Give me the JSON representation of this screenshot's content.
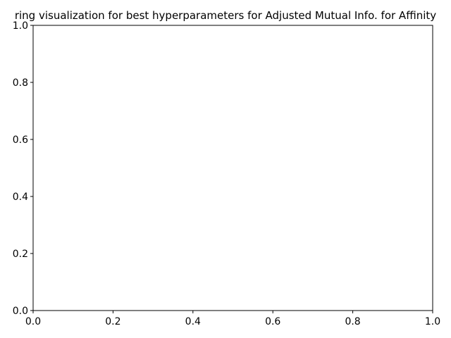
{
  "chart_data": {
    "type": "scatter",
    "title": "ring visualization for best hyperparameters for Adjusted Mutual Info. for Affinity",
    "xlabel": "",
    "ylabel": "",
    "xlim": [
      0.0,
      1.0
    ],
    "ylim": [
      0.0,
      1.0
    ],
    "x_ticks": [
      "0.0",
      "0.2",
      "0.4",
      "0.6",
      "0.8",
      "1.0"
    ],
    "y_ticks": [
      "0.0",
      "0.2",
      "0.4",
      "0.6",
      "0.8",
      "1.0"
    ],
    "series": [],
    "grid": false,
    "legend": "none"
  }
}
